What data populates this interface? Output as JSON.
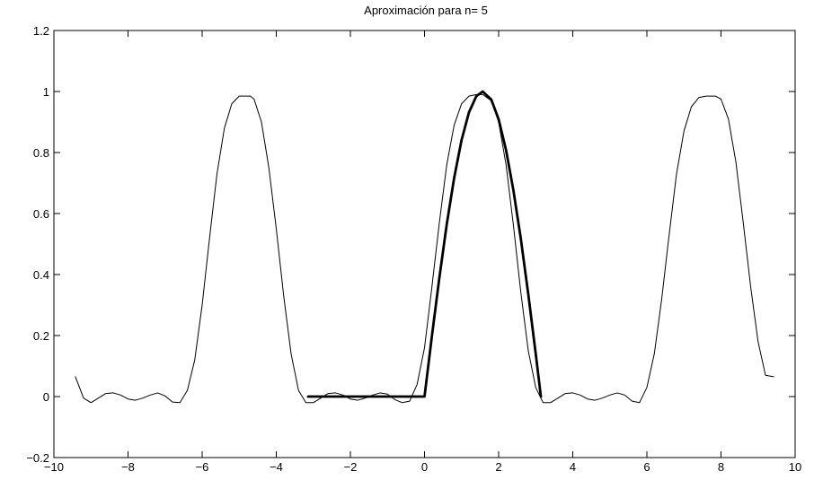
{
  "chart_data": {
    "type": "line",
    "title": "Aproximación para n= 5",
    "xlabel": "",
    "ylabel": "",
    "xlim": [
      -10,
      10
    ],
    "ylim": [
      -0.2,
      1.2
    ],
    "xticks": [
      -10,
      -8,
      -6,
      -4,
      -2,
      0,
      2,
      4,
      6,
      8,
      10
    ],
    "yticks": [
      -0.2,
      0,
      0.2,
      0.4,
      0.6,
      0.8,
      1,
      1.2
    ],
    "xtick_labels": [
      "−10",
      "−8",
      "−6",
      "−4",
      "−2",
      "0",
      "2",
      "4",
      "6",
      "8",
      "10"
    ],
    "ytick_labels": [
      "−0.2",
      "0",
      "0.2",
      "0.4",
      "0.6",
      "0.8",
      "1",
      "1.2"
    ],
    "grid": false,
    "legend": "none",
    "series": [
      {
        "style": "thin",
        "color": "#000000",
        "x": [
          -9.42,
          -9.2,
          -9.0,
          -8.8,
          -8.6,
          -8.4,
          -8.2,
          -8.0,
          -7.8,
          -7.6,
          -7.4,
          -7.2,
          -7.0,
          -6.8,
          -6.6,
          -6.4,
          -6.2,
          -6.0,
          -5.8,
          -5.6,
          -5.4,
          -5.2,
          -5.0,
          -4.8,
          -4.7,
          -4.6,
          -4.4,
          -4.2,
          -4.0,
          -3.8,
          -3.6,
          -3.4,
          -3.2,
          -3.0,
          -2.8,
          -2.6,
          -2.4,
          -2.2,
          -2.0,
          -1.8,
          -1.6,
          -1.4,
          -1.2,
          -1.0,
          -0.8,
          -0.6,
          -0.4,
          -0.2,
          0.0,
          0.2,
          0.4,
          0.6,
          0.8,
          1.0,
          1.2,
          1.4,
          1.57,
          1.8,
          2.0,
          2.2,
          2.4,
          2.6,
          2.8,
          3.0,
          3.2,
          3.4,
          3.6,
          3.8,
          4.0,
          4.2,
          4.4,
          4.6,
          4.8,
          5.0,
          5.2,
          5.4,
          5.6,
          5.8,
          6.0,
          6.2,
          6.4,
          6.6,
          6.8,
          7.0,
          7.2,
          7.4,
          7.6,
          7.8,
          7.85,
          8.0,
          8.2,
          8.4,
          8.6,
          8.8,
          9.0,
          9.2,
          9.42
        ],
        "y": [
          0.065,
          -0.005,
          -0.02,
          -0.005,
          0.01,
          0.012,
          0.005,
          -0.008,
          -0.012,
          -0.005,
          0.005,
          0.012,
          0.002,
          -0.018,
          -0.02,
          0.02,
          0.12,
          0.3,
          0.52,
          0.73,
          0.88,
          0.96,
          0.985,
          0.985,
          0.985,
          0.975,
          0.9,
          0.75,
          0.55,
          0.33,
          0.14,
          0.02,
          -0.02,
          -0.02,
          -0.005,
          0.01,
          0.012,
          0.005,
          -0.008,
          -0.012,
          -0.005,
          0.005,
          0.012,
          0.008,
          -0.01,
          -0.02,
          -0.015,
          0.04,
          0.16,
          0.36,
          0.57,
          0.76,
          0.89,
          0.96,
          0.985,
          0.99,
          0.99,
          0.97,
          0.9,
          0.76,
          0.56,
          0.34,
          0.15,
          0.03,
          -0.02,
          -0.02,
          -0.005,
          0.01,
          0.012,
          0.005,
          -0.008,
          -0.012,
          -0.005,
          0.005,
          0.012,
          0.005,
          -0.015,
          -0.02,
          0.03,
          0.14,
          0.32,
          0.53,
          0.73,
          0.87,
          0.95,
          0.98,
          0.985,
          0.985,
          0.985,
          0.975,
          0.91,
          0.77,
          0.57,
          0.36,
          0.18,
          0.07,
          0.065
        ]
      },
      {
        "style": "thick",
        "color": "#000000",
        "x": [
          -3.14,
          -2.5,
          -2.0,
          -1.5,
          -1.0,
          -0.5,
          0.0,
          0.0,
          0.2,
          0.4,
          0.6,
          0.8,
          1.0,
          1.2,
          1.4,
          1.57,
          1.8,
          2.0,
          2.2,
          2.4,
          2.6,
          2.8,
          3.0,
          3.14
        ],
        "y": [
          0,
          0,
          0,
          0,
          0,
          0,
          0,
          0,
          0.199,
          0.389,
          0.565,
          0.717,
          0.841,
          0.932,
          0.985,
          1.0,
          0.974,
          0.909,
          0.808,
          0.675,
          0.516,
          0.335,
          0.141,
          0.0
        ]
      }
    ]
  }
}
